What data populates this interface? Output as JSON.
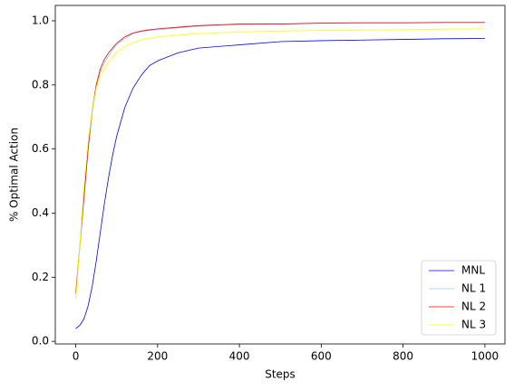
{
  "chart_data": {
    "type": "line",
    "x_label": "Steps",
    "y_label": "% Optimal Action",
    "x": [
      0,
      10,
      20,
      30,
      40,
      50,
      60,
      70,
      80,
      90,
      100,
      120,
      140,
      160,
      180,
      200,
      250,
      300,
      400,
      500,
      600,
      700,
      800,
      900,
      1000
    ],
    "series": [
      {
        "name": "MNL",
        "color": "#0000ff",
        "values": [
          0.04,
          0.05,
          0.07,
          0.11,
          0.17,
          0.25,
          0.34,
          0.43,
          0.51,
          0.58,
          0.64,
          0.73,
          0.79,
          0.83,
          0.86,
          0.875,
          0.9,
          0.915,
          0.925,
          0.935,
          0.938,
          0.94,
          0.942,
          0.944,
          0.945
        ]
      },
      {
        "name": "NL 1",
        "color": "#87ceeb",
        "values": [
          0.14,
          0.29,
          0.44,
          0.59,
          0.71,
          0.79,
          0.84,
          0.87,
          0.89,
          0.91,
          0.925,
          0.945,
          0.96,
          0.966,
          0.97,
          0.972,
          0.978,
          0.983,
          0.988,
          0.99,
          0.992,
          0.993,
          0.993,
          0.994,
          0.994
        ]
      },
      {
        "name": "NL 2",
        "color": "#ff0000",
        "values": [
          0.15,
          0.3,
          0.45,
          0.6,
          0.72,
          0.8,
          0.85,
          0.88,
          0.9,
          0.915,
          0.93,
          0.95,
          0.962,
          0.968,
          0.972,
          0.975,
          0.98,
          0.985,
          0.99,
          0.99,
          0.993,
          0.994,
          0.994,
          0.995,
          0.995
        ]
      },
      {
        "name": "NL 3",
        "color": "#ffff00",
        "values": [
          0.13,
          0.3,
          0.48,
          0.62,
          0.72,
          0.79,
          0.83,
          0.85,
          0.87,
          0.885,
          0.9,
          0.92,
          0.932,
          0.94,
          0.945,
          0.95,
          0.955,
          0.96,
          0.965,
          0.968,
          0.97,
          0.971,
          0.972,
          0.974,
          0.975
        ]
      }
    ],
    "xlim": [
      -50,
      1049
    ],
    "ylim": [
      -0.008,
      1.048
    ],
    "xticks": [
      0,
      200,
      400,
      600,
      800,
      1000
    ],
    "yticks": [
      {
        "value": 0,
        "label": "0.0"
      },
      {
        "value": 0.2,
        "label": "0.2"
      },
      {
        "value": 0.4,
        "label": "0.4"
      },
      {
        "value": 0.6,
        "label": "0.6"
      },
      {
        "value": 0.8,
        "label": "0.8"
      },
      {
        "value": 1,
        "label": "1.0"
      }
    ],
    "legend": "lower right"
  }
}
